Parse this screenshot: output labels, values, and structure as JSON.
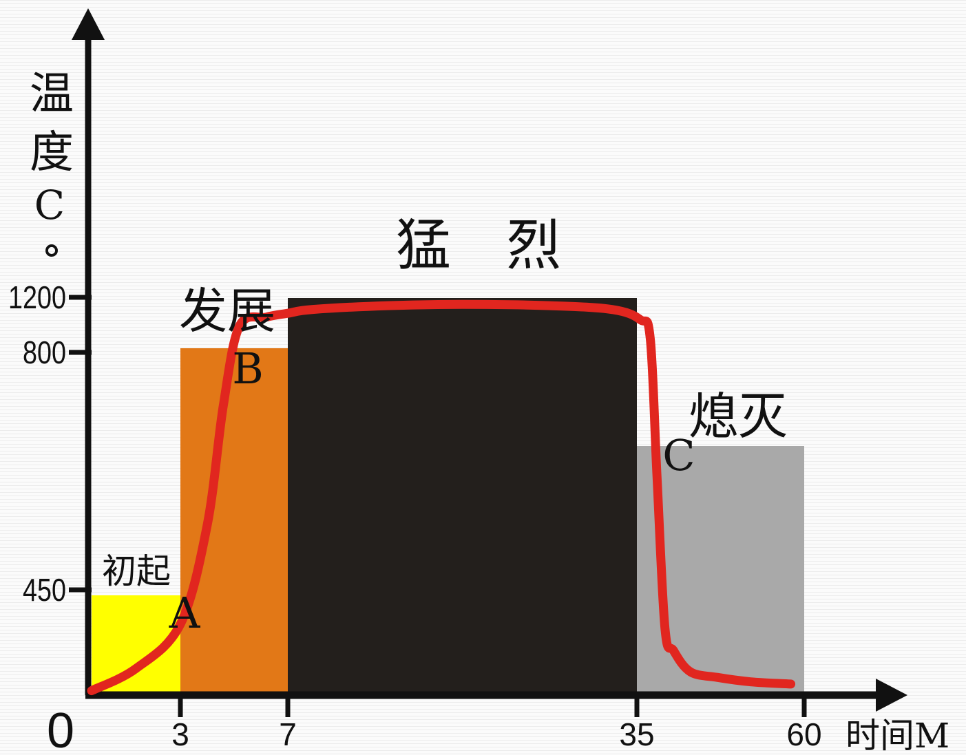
{
  "chart_data": {
    "type": "area",
    "ylabel": "温度C°",
    "xlabel": "时间M",
    "origin_label": "0",
    "x_ticks": [
      {
        "value": 3,
        "label": "3"
      },
      {
        "value": 7,
        "label": "7"
      },
      {
        "value": 35,
        "label": "35"
      },
      {
        "value": 60,
        "label": "60"
      }
    ],
    "y_ticks": [
      {
        "value": 450,
        "label": "450"
      },
      {
        "value": 800,
        "label": "800"
      },
      {
        "value": 1200,
        "label": "1200"
      }
    ],
    "stages": [
      {
        "label": "初起",
        "x_start": 0,
        "x_end": 3,
        "height": 450,
        "color": "#ffff00"
      },
      {
        "label": "发展",
        "x_start": 3,
        "x_end": 7,
        "height": 800,
        "color": "#e27817"
      },
      {
        "label": "猛　烈",
        "x_start": 7,
        "x_end": 35,
        "height": 1200,
        "color": "#231f1c"
      },
      {
        "label": "熄灭",
        "x_start": 35,
        "x_end": 60,
        "height": 600,
        "color": "#a9a9a9"
      }
    ],
    "points": [
      {
        "label": "A",
        "x": 3,
        "y": 430
      },
      {
        "label": "B",
        "x": 7,
        "y": 800
      },
      {
        "label": "C",
        "x": 38,
        "y": 600
      }
    ],
    "curve": {
      "color": "#e1261f",
      "x": [
        0,
        1.5,
        3,
        4,
        4.6,
        5.2,
        6.2,
        7,
        9,
        15,
        21,
        28,
        33,
        35.5,
        37,
        38,
        39.2,
        40.5,
        43,
        47,
        52,
        58
      ],
      "y": [
        20,
        120,
        320,
        550,
        720,
        980,
        1050,
        1080,
        1110,
        1140,
        1150,
        1140,
        1110,
        1030,
        880,
        620,
        300,
        200,
        105,
        80,
        60,
        50
      ]
    }
  }
}
